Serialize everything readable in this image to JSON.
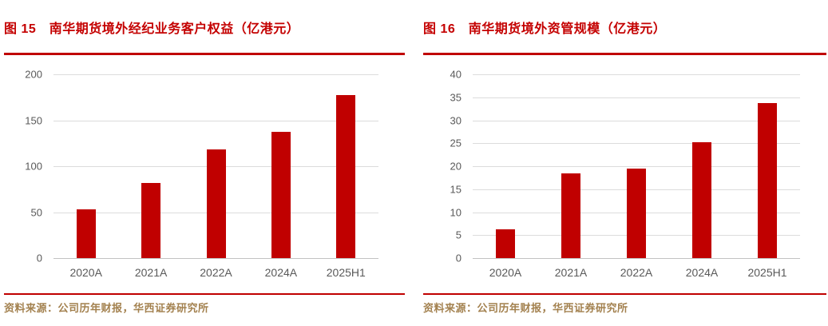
{
  "colors": {
    "accent_red": "#C00000",
    "bar_fill": "#C00000",
    "rule_red": "#C00000",
    "source_text": "#A3814F",
    "axis_text": "#595959",
    "gridline": "#DCDCDC"
  },
  "figures": [
    {
      "title": "图 15　南华期货境外经纪业务客户权益（亿港元）",
      "source": "资料来源：公司历年财报，华西证券研究所"
    },
    {
      "title": "图 16　南华期货境外资管规模（亿港元）",
      "source": "资料来源：公司历年财报，华西证券研究所"
    }
  ],
  "chart_data": [
    {
      "type": "bar",
      "title": "图 15 南华期货境外经纪业务客户权益（亿港元）",
      "categories": [
        "2020A",
        "2021A",
        "2022A",
        "2024A",
        "2025H1"
      ],
      "values": [
        53,
        82,
        118,
        137,
        177
      ],
      "xlabel": "",
      "ylabel": "",
      "ylim": [
        0,
        200
      ],
      "yticks": [
        0,
        50,
        100,
        150,
        200
      ],
      "grid": true,
      "legend_position": "none",
      "bar_color": "#C00000"
    },
    {
      "type": "bar",
      "title": "图 16 南华期货境外资管规模（亿港元）",
      "categories": [
        "2020A",
        "2021A",
        "2022A",
        "2024A",
        "2025H1"
      ],
      "values": [
        6.3,
        18.4,
        19.5,
        25.2,
        33.8
      ],
      "xlabel": "",
      "ylabel": "",
      "ylim": [
        0,
        40
      ],
      "yticks": [
        0,
        5,
        10,
        15,
        20,
        25,
        30,
        35,
        40
      ],
      "grid": true,
      "legend_position": "none",
      "bar_color": "#C00000"
    }
  ]
}
